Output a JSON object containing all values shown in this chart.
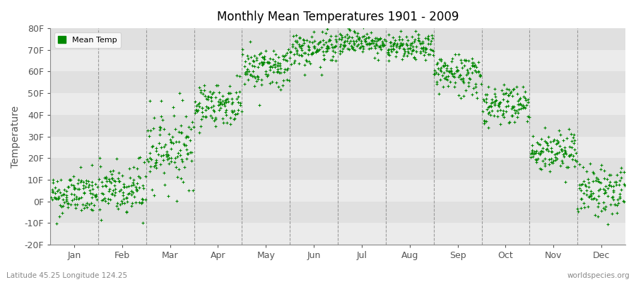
{
  "title": "Monthly Mean Temperatures 1901 - 2009",
  "ylabel": "Temperature",
  "dot_color": "#008800",
  "bg_color_light": "#EBEBEB",
  "bg_color_dark": "#DCDCDC",
  "fig_bg_color": "#FFFFFF",
  "legend_label": "Mean Temp",
  "bottom_left_label": "Latitude 45.25 Longitude 124.25",
  "bottom_right_label": "worldspecies.org",
  "ylim": [
    -20,
    80
  ],
  "yticks": [
    -20,
    -10,
    0,
    10,
    20,
    30,
    40,
    50,
    60,
    70,
    80
  ],
  "ytick_labels": [
    "-20F",
    "-10F",
    "0F",
    "10F",
    "20F",
    "30F",
    "40F",
    "50F",
    "60F",
    "70F",
    "80F"
  ],
  "months": [
    "Jan",
    "Feb",
    "Mar",
    "Apr",
    "May",
    "Jun",
    "Jul",
    "Aug",
    "Sep",
    "Oct",
    "Nov",
    "Dec"
  ],
  "month_mean_temps": [
    3,
    5,
    25,
    45,
    62,
    70,
    74,
    71,
    59,
    45,
    23,
    5
  ],
  "month_spread": [
    5,
    7,
    9,
    5,
    5,
    4,
    3,
    3,
    5,
    5,
    5,
    6
  ],
  "n_years": 109,
  "seed": 42,
  "dashed_line_color": "#888888",
  "grid_band_colors": [
    "#EBEBEB",
    "#E0E0E0"
  ]
}
